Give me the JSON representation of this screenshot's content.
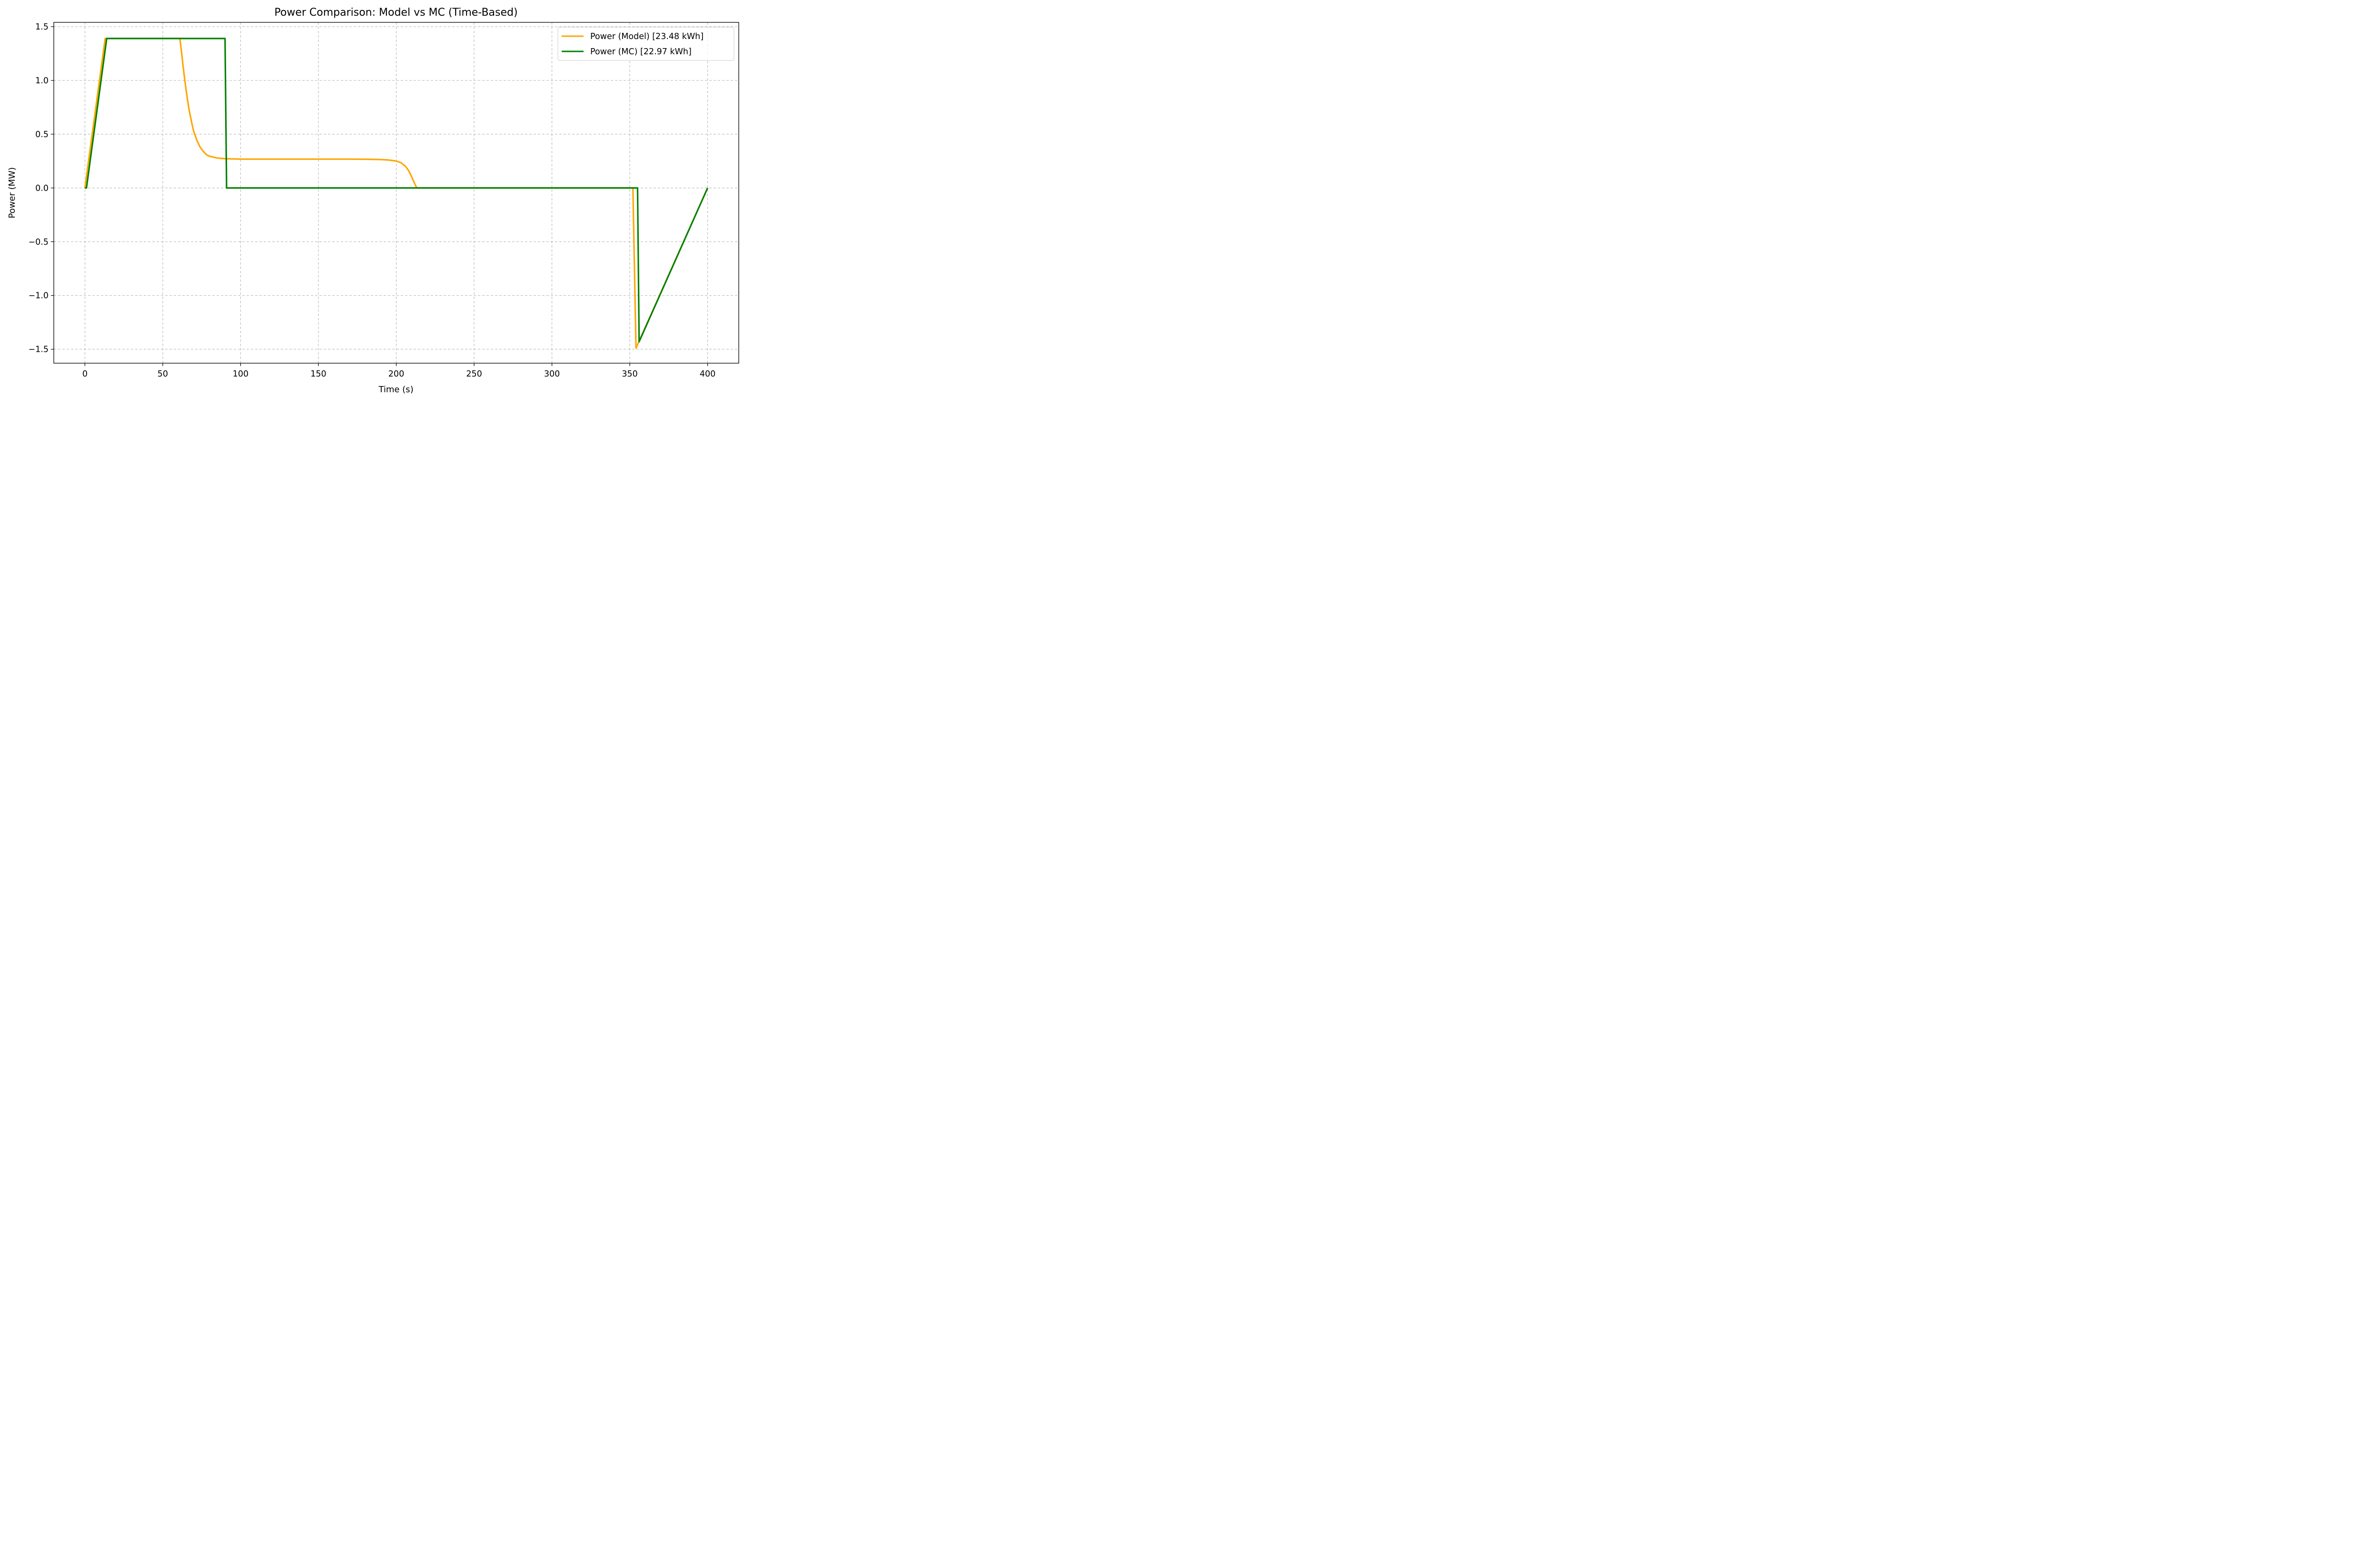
{
  "chart_data": {
    "type": "line",
    "title": "Power Comparison: Model vs MC (Time-Based)",
    "xlabel": "Time (s)",
    "ylabel": "Power (MW)",
    "xlim": [
      -20,
      420
    ],
    "ylim": [
      -1.63,
      1.54
    ],
    "xticks": [
      0,
      50,
      100,
      150,
      200,
      250,
      300,
      350,
      400
    ],
    "xtick_labels": [
      "0",
      "50",
      "100",
      "150",
      "200",
      "250",
      "300",
      "350",
      "400"
    ],
    "yticks": [
      1.5,
      1.0,
      0.5,
      0.0,
      -0.5,
      -1.0,
      -1.5
    ],
    "ytick_labels": [
      "1.5",
      "1.0",
      "0.5",
      "0.0",
      "−0.5",
      "−1.0",
      "−1.5"
    ],
    "grid": true,
    "legend_position": "top-right",
    "series": [
      {
        "name": "Power (Model) [23.48 kWh]",
        "color": "#FFA500",
        "x": [
          0,
          13,
          61,
          62,
          63,
          64,
          65,
          66,
          67,
          68,
          69,
          70,
          72,
          74,
          76,
          78,
          80,
          85,
          90,
          100,
          150,
          170,
          180,
          190,
          195,
          200,
          203,
          206,
          208,
          210,
          211.5,
          213,
          213.5,
          250,
          300,
          352,
          354,
          400
        ],
        "y": [
          0,
          1.39,
          1.39,
          1.27,
          1.14,
          1.02,
          0.91,
          0.81,
          0.72,
          0.65,
          0.58,
          0.52,
          0.44,
          0.38,
          0.34,
          0.31,
          0.295,
          0.278,
          0.272,
          0.268,
          0.268,
          0.268,
          0.267,
          0.264,
          0.26,
          0.25,
          0.235,
          0.2,
          0.16,
          0.1,
          0.05,
          0.005,
          0,
          0,
          0,
          0,
          -1.49,
          0
        ]
      },
      {
        "name": "Power (MC) [22.97 kWh]",
        "color": "#008000",
        "x": [
          0,
          1,
          14,
          90,
          91,
          100,
          200,
          300,
          355,
          356,
          400
        ],
        "y": [
          0,
          0,
          1.39,
          1.39,
          0,
          0,
          0,
          0,
          0,
          -1.43,
          0
        ]
      }
    ]
  }
}
